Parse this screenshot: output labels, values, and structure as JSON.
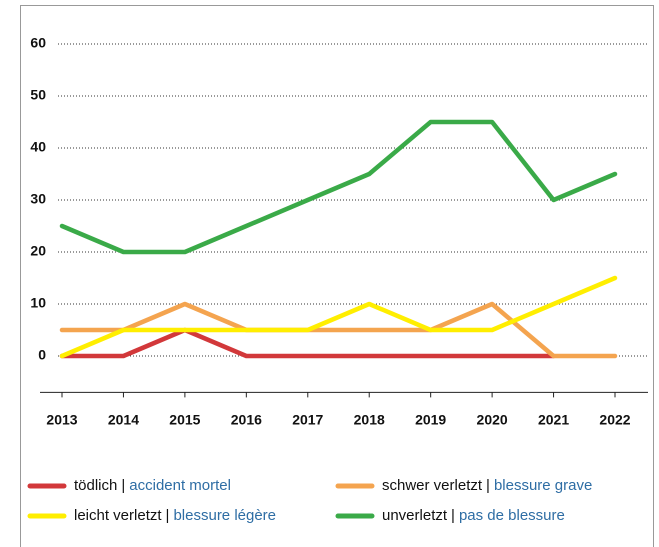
{
  "chart_data": {
    "type": "line",
    "categories": [
      "2013",
      "2014",
      "2015",
      "2016",
      "2017",
      "2018",
      "2019",
      "2020",
      "2021",
      "2022"
    ],
    "ylim": [
      -7,
      60
    ],
    "yticks": [
      0,
      10,
      20,
      30,
      40,
      50,
      60
    ],
    "grid": true,
    "separator": "|",
    "series": [
      {
        "name": "tödlich",
        "name_fr": "accident mortel",
        "color": "#d2383a",
        "values": [
          0,
          0,
          5,
          0,
          0,
          0,
          0,
          0,
          0,
          null
        ]
      },
      {
        "name": "schwer verletzt",
        "name_fr": "blessure grave",
        "color": "#f4a44f",
        "values": [
          5,
          5,
          10,
          5,
          5,
          5,
          5,
          10,
          0,
          0
        ]
      },
      {
        "name": "leicht verletzt",
        "name_fr": "blessure légère",
        "color": "#ffee00",
        "values": [
          0,
          5,
          5,
          5,
          5,
          10,
          5,
          5,
          10,
          15
        ]
      },
      {
        "name": "unverletzt",
        "name_fr": "pas de blessure",
        "color": "#3aaa48",
        "values": [
          25,
          20,
          20,
          25,
          30,
          35,
          45,
          45,
          30,
          35
        ]
      }
    ]
  }
}
